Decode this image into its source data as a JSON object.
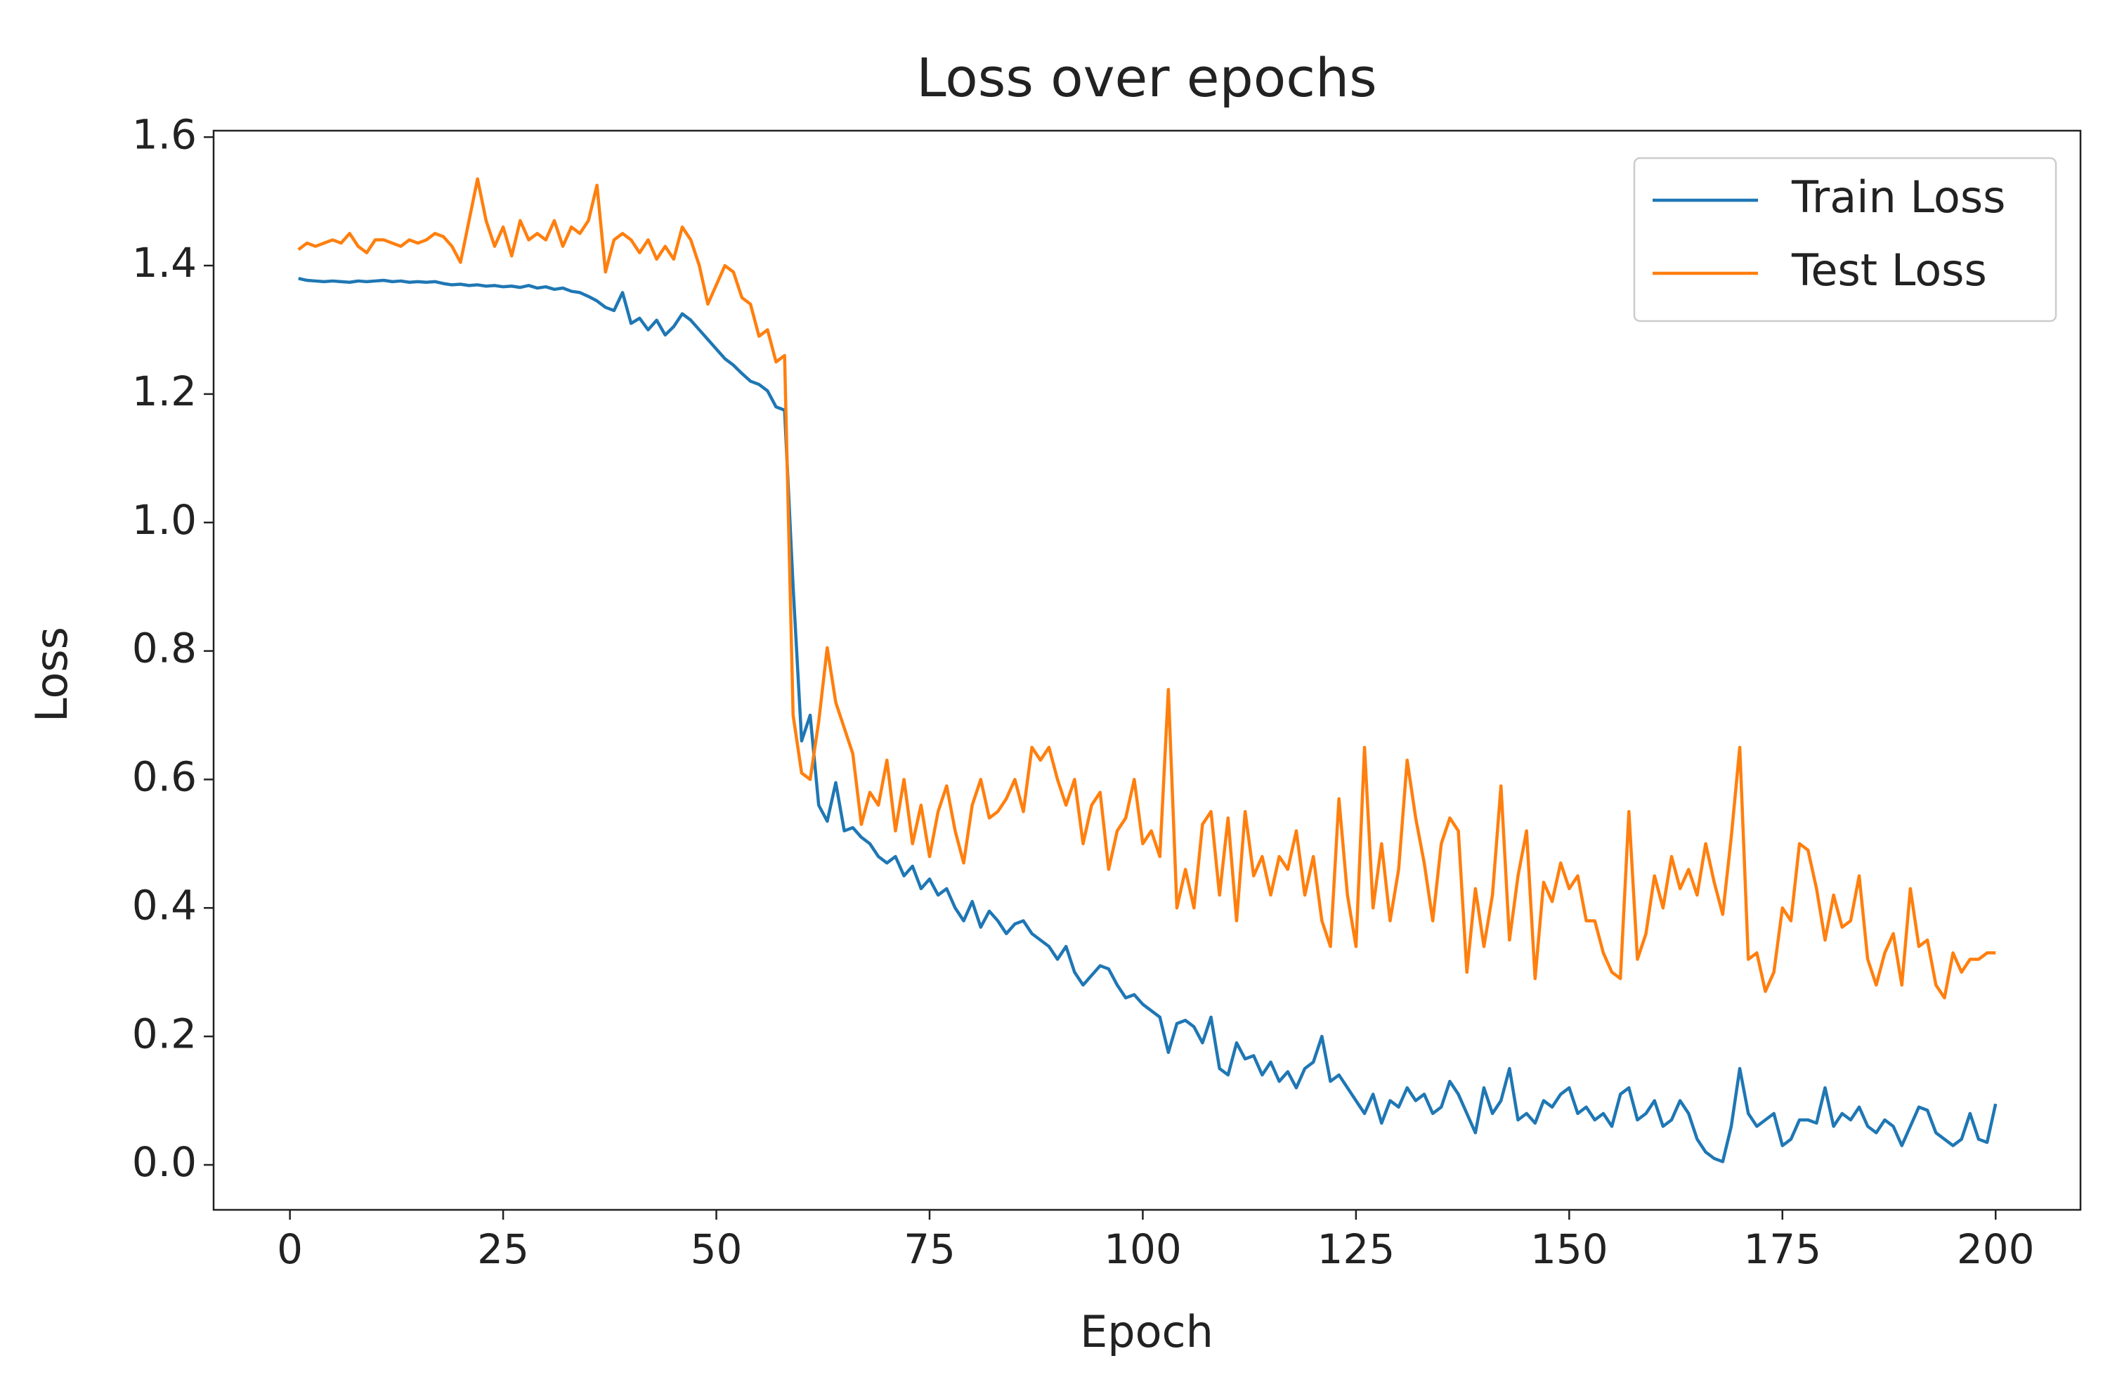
{
  "chart_data": {
    "type": "line",
    "title": "Loss over epochs",
    "x_label": "Epoch",
    "y_label": "Loss",
    "legend_position": "upper right",
    "x": [
      1,
      2,
      3,
      4,
      5,
      6,
      7,
      8,
      9,
      10,
      11,
      12,
      13,
      14,
      15,
      16,
      17,
      18,
      19,
      20,
      21,
      22,
      23,
      24,
      25,
      26,
      27,
      28,
      29,
      30,
      31,
      32,
      33,
      34,
      35,
      36,
      37,
      38,
      39,
      40,
      41,
      42,
      43,
      44,
      45,
      46,
      47,
      48,
      49,
      50,
      51,
      52,
      53,
      54,
      55,
      56,
      57,
      58,
      59,
      60,
      61,
      62,
      63,
      64,
      65,
      66,
      67,
      68,
      69,
      70,
      71,
      72,
      73,
      74,
      75,
      76,
      77,
      78,
      79,
      80,
      81,
      82,
      83,
      84,
      85,
      86,
      87,
      88,
      89,
      90,
      91,
      92,
      93,
      94,
      95,
      96,
      97,
      98,
      99,
      100,
      101,
      102,
      103,
      104,
      105,
      106,
      107,
      108,
      109,
      110,
      111,
      112,
      113,
      114,
      115,
      116,
      117,
      118,
      119,
      120,
      121,
      122,
      123,
      124,
      125,
      126,
      127,
      128,
      129,
      130,
      131,
      132,
      133,
      134,
      135,
      136,
      137,
      138,
      139,
      140,
      141,
      142,
      143,
      144,
      145,
      146,
      147,
      148,
      149,
      150,
      151,
      152,
      153,
      154,
      155,
      156,
      157,
      158,
      159,
      160,
      161,
      162,
      163,
      164,
      165,
      166,
      167,
      168,
      169,
      170,
      171,
      172,
      173,
      174,
      175,
      176,
      177,
      178,
      179,
      180,
      181,
      182,
      183,
      184,
      185,
      186,
      187,
      188,
      189,
      190,
      191,
      192,
      193,
      194,
      195,
      196,
      197,
      198,
      199,
      200
    ],
    "series": [
      {
        "name": "Train Loss",
        "color": "#1f77b4",
        "values": [
          1.38,
          1.377,
          1.376,
          1.375,
          1.376,
          1.375,
          1.374,
          1.376,
          1.375,
          1.376,
          1.377,
          1.375,
          1.376,
          1.374,
          1.375,
          1.374,
          1.375,
          1.372,
          1.37,
          1.371,
          1.369,
          1.37,
          1.368,
          1.369,
          1.367,
          1.368,
          1.366,
          1.369,
          1.365,
          1.367,
          1.363,
          1.365,
          1.36,
          1.358,
          1.352,
          1.345,
          1.335,
          1.33,
          1.358,
          1.31,
          1.318,
          1.3,
          1.315,
          1.292,
          1.305,
          1.325,
          1.315,
          1.3,
          1.285,
          1.27,
          1.255,
          1.245,
          1.232,
          1.22,
          1.215,
          1.205,
          1.18,
          1.175,
          0.9,
          0.66,
          0.7,
          0.56,
          0.535,
          0.595,
          0.52,
          0.525,
          0.51,
          0.5,
          0.48,
          0.47,
          0.48,
          0.45,
          0.465,
          0.43,
          0.445,
          0.42,
          0.43,
          0.4,
          0.38,
          0.41,
          0.37,
          0.395,
          0.38,
          0.36,
          0.375,
          0.38,
          0.36,
          0.35,
          0.34,
          0.32,
          0.34,
          0.3,
          0.28,
          0.295,
          0.31,
          0.305,
          0.28,
          0.26,
          0.265,
          0.25,
          0.24,
          0.23,
          0.175,
          0.22,
          0.225,
          0.215,
          0.19,
          0.23,
          0.15,
          0.14,
          0.19,
          0.165,
          0.17,
          0.14,
          0.16,
          0.13,
          0.145,
          0.12,
          0.15,
          0.16,
          0.2,
          0.13,
          0.14,
          0.12,
          0.1,
          0.08,
          0.11,
          0.065,
          0.1,
          0.09,
          0.12,
          0.1,
          0.11,
          0.08,
          0.09,
          0.13,
          0.11,
          0.08,
          0.05,
          0.12,
          0.08,
          0.1,
          0.15,
          0.07,
          0.08,
          0.065,
          0.1,
          0.09,
          0.11,
          0.12,
          0.08,
          0.09,
          0.07,
          0.08,
          0.06,
          0.11,
          0.12,
          0.07,
          0.08,
          0.1,
          0.06,
          0.07,
          0.1,
          0.08,
          0.04,
          0.02,
          0.01,
          0.005,
          0.06,
          0.15,
          0.08,
          0.06,
          0.07,
          0.08,
          0.03,
          0.04,
          0.07,
          0.07,
          0.065,
          0.12,
          0.06,
          0.08,
          0.07,
          0.09,
          0.06,
          0.05,
          0.07,
          0.06,
          0.03,
          0.06,
          0.09,
          0.085,
          0.05,
          0.04,
          0.03,
          0.04,
          0.08,
          0.04,
          0.035,
          0.095
        ]
      },
      {
        "name": "Test Loss",
        "color": "#ff7f0e",
        "values": [
          1.425,
          1.435,
          1.43,
          1.435,
          1.44,
          1.435,
          1.45,
          1.43,
          1.42,
          1.44,
          1.44,
          1.435,
          1.43,
          1.44,
          1.435,
          1.44,
          1.45,
          1.445,
          1.43,
          1.405,
          1.47,
          1.535,
          1.47,
          1.43,
          1.46,
          1.415,
          1.47,
          1.44,
          1.45,
          1.44,
          1.47,
          1.43,
          1.46,
          1.45,
          1.47,
          1.525,
          1.39,
          1.44,
          1.45,
          1.44,
          1.42,
          1.44,
          1.41,
          1.43,
          1.41,
          1.46,
          1.44,
          1.4,
          1.34,
          1.37,
          1.4,
          1.39,
          1.35,
          1.34,
          1.29,
          1.3,
          1.25,
          1.26,
          0.7,
          0.61,
          0.6,
          0.69,
          0.805,
          0.72,
          0.68,
          0.64,
          0.53,
          0.58,
          0.56,
          0.63,
          0.52,
          0.6,
          0.5,
          0.56,
          0.48,
          0.55,
          0.59,
          0.52,
          0.47,
          0.56,
          0.6,
          0.54,
          0.55,
          0.57,
          0.6,
          0.55,
          0.65,
          0.63,
          0.65,
          0.6,
          0.56,
          0.6,
          0.5,
          0.56,
          0.58,
          0.46,
          0.52,
          0.54,
          0.6,
          0.5,
          0.52,
          0.48,
          0.74,
          0.4,
          0.46,
          0.4,
          0.53,
          0.55,
          0.42,
          0.54,
          0.38,
          0.55,
          0.45,
          0.48,
          0.42,
          0.48,
          0.46,
          0.52,
          0.42,
          0.48,
          0.38,
          0.34,
          0.57,
          0.42,
          0.34,
          0.65,
          0.4,
          0.5,
          0.38,
          0.46,
          0.63,
          0.54,
          0.47,
          0.38,
          0.5,
          0.54,
          0.52,
          0.3,
          0.43,
          0.34,
          0.42,
          0.59,
          0.35,
          0.45,
          0.52,
          0.29,
          0.44,
          0.41,
          0.47,
          0.43,
          0.45,
          0.38,
          0.38,
          0.33,
          0.3,
          0.29,
          0.55,
          0.32,
          0.36,
          0.45,
          0.4,
          0.48,
          0.43,
          0.46,
          0.42,
          0.5,
          0.44,
          0.39,
          0.51,
          0.65,
          0.32,
          0.33,
          0.27,
          0.3,
          0.4,
          0.38,
          0.5,
          0.49,
          0.43,
          0.35,
          0.42,
          0.37,
          0.38,
          0.45,
          0.32,
          0.28,
          0.33,
          0.36,
          0.28,
          0.43,
          0.34,
          0.35,
          0.28,
          0.26,
          0.33,
          0.3,
          0.32,
          0.32,
          0.33,
          0.33
        ]
      }
    ],
    "xlim": [
      -8.95,
      209.95
    ],
    "ylim": [
      -0.07,
      1.61
    ],
    "xticks": [
      0,
      25,
      50,
      75,
      100,
      125,
      150,
      175,
      200
    ],
    "yticks": [
      {
        "value": 0,
        "label": "0.0"
      },
      0.2,
      0.4,
      0.6,
      0.8,
      {
        "value": 1,
        "label": "1.0"
      },
      1.2,
      1.4,
      1.6
    ],
    "grid": false
  }
}
